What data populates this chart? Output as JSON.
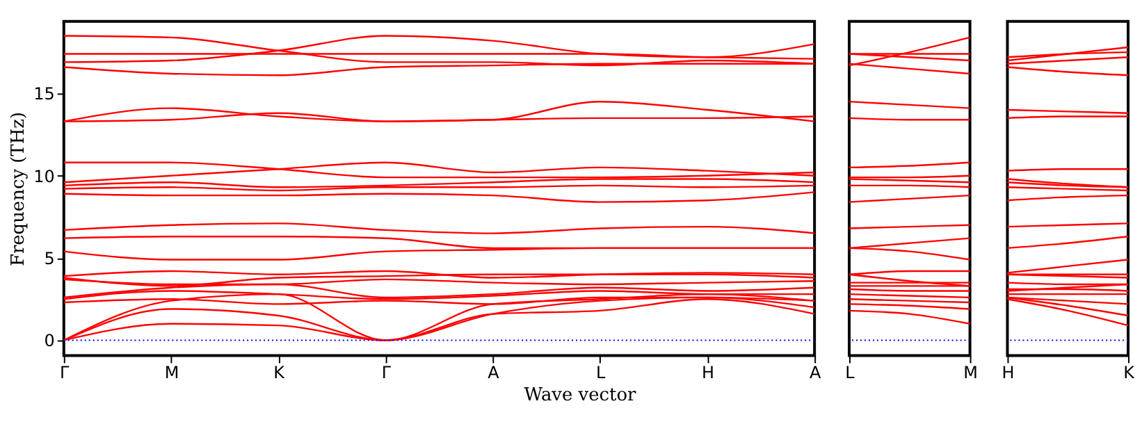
{
  "chart_data": [
    {
      "type": "line",
      "xlabel": "Wave vector",
      "ylabel": "Frequency (THz)",
      "categories": [
        "Γ",
        "M",
        "K",
        "Γ",
        "A",
        "L",
        "H",
        "A"
      ],
      "ylim": [
        -0.93,
        19.38
      ],
      "yticks": [
        0,
        5,
        10,
        15
      ],
      "grid": false,
      "ref_lines": [
        {
          "axis": "y",
          "value": 0,
          "color": "#0000ff",
          "line_style": "dotted"
        }
      ],
      "series": [
        {
          "color": "#ff0000",
          "values": [
            0,
            1.0,
            0.9,
            0,
            1.6,
            1.8,
            2.5,
            1.6
          ]
        },
        {
          "color": "#ff0000",
          "values": [
            0,
            1.9,
            1.5,
            0,
            1.6,
            2.4,
            2.6,
            2.0
          ]
        },
        {
          "color": "#ff0000",
          "values": [
            0,
            2.4,
            2.8,
            0,
            2.2,
            2.5,
            2.8,
            2.4
          ]
        },
        {
          "color": "#ff0000",
          "values": [
            2.3,
            2.5,
            2.2,
            2.4,
            2.2,
            2.6,
            2.6,
            2.4
          ]
        },
        {
          "color": "#ff0000",
          "values": [
            2.5,
            3.0,
            2.8,
            2.5,
            2.7,
            3.0,
            2.8,
            2.8
          ]
        },
        {
          "color": "#ff0000",
          "values": [
            2.6,
            3.2,
            3.4,
            2.6,
            2.8,
            3.2,
            3.0,
            3.2
          ]
        },
        {
          "color": "#ff0000",
          "values": [
            3.7,
            3.4,
            3.4,
            3.7,
            3.5,
            3.4,
            3.5,
            3.6
          ]
        },
        {
          "color": "#ff0000",
          "values": [
            3.8,
            3.3,
            3.8,
            3.9,
            4.0,
            4.0,
            4.0,
            3.8
          ]
        },
        {
          "color": "#ff0000",
          "values": [
            3.9,
            4.2,
            4.0,
            4.2,
            3.8,
            4.0,
            4.1,
            4.0
          ]
        },
        {
          "color": "#ff0000",
          "values": [
            6.2,
            6.3,
            6.3,
            6.2,
            5.6,
            5.6,
            5.6,
            5.6
          ]
        },
        {
          "color": "#ff0000",
          "values": [
            6.7,
            7.0,
            7.1,
            6.7,
            6.5,
            6.8,
            6.9,
            6.5
          ]
        },
        {
          "color": "#ff0000",
          "values": [
            8.9,
            8.8,
            8.8,
            8.9,
            8.8,
            8.4,
            8.5,
            9.0
          ]
        },
        {
          "color": "#ff0000",
          "values": [
            9.2,
            9.3,
            9.1,
            9.3,
            9.3,
            9.4,
            9.3,
            9.4
          ]
        },
        {
          "color": "#ff0000",
          "values": [
            9.4,
            9.6,
            9.3,
            9.4,
            9.6,
            9.8,
            9.8,
            9.6
          ]
        },
        {
          "color": "#ff0000",
          "values": [
            9.6,
            10.0,
            10.4,
            10.8,
            10.2,
            10.5,
            10.3,
            10.0
          ]
        },
        {
          "color": "#ff0000",
          "values": [
            10.8,
            10.8,
            10.4,
            9.9,
            9.9,
            9.9,
            10.0,
            10.2
          ]
        },
        {
          "color": "#ff0000",
          "values": [
            13.3,
            13.4,
            13.8,
            13.3,
            13.4,
            13.5,
            13.5,
            13.6
          ]
        },
        {
          "color": "#ff0000",
          "values": [
            13.3,
            14.1,
            13.6,
            13.3,
            13.4,
            14.5,
            14.0,
            13.3
          ]
        },
        {
          "color": "#ff0000",
          "values": [
            16.6,
            16.2,
            16.1,
            16.6,
            16.7,
            16.8,
            16.8,
            16.8
          ]
        },
        {
          "color": "#ff0000",
          "values": [
            16.9,
            17.0,
            17.6,
            18.5,
            18.2,
            17.4,
            17.2,
            18.0
          ]
        },
        {
          "color": "#ff0000",
          "values": [
            17.4,
            17.4,
            17.4,
            17.4,
            17.4,
            17.4,
            17.2,
            17.1
          ]
        },
        {
          "color": "#ff0000",
          "values": [
            18.5,
            18.4,
            17.6,
            16.9,
            16.9,
            16.7,
            17.0,
            16.8
          ]
        },
        {
          "color": "#ff0000",
          "values": [
            5.4,
            4.9,
            4.9,
            5.4,
            5.5,
            5.6,
            5.6,
            5.6
          ]
        }
      ]
    },
    {
      "type": "line",
      "categories": [
        "L",
        null,
        "M"
      ],
      "ylim": [
        -0.93,
        19.38
      ],
      "tick_labels": "x",
      "grid": false,
      "ref_lines": [
        {
          "axis": "y",
          "value": 0,
          "color": "#0000ff",
          "line_style": "dotted"
        }
      ],
      "series": [
        {
          "color": "#ff0000",
          "values": [
            1.8,
            1.6,
            1.0
          ]
        },
        {
          "color": "#ff0000",
          "values": [
            2.2,
            2.1,
            1.9
          ]
        },
        {
          "color": "#ff0000",
          "values": [
            2.5,
            2.4,
            2.3
          ]
        },
        {
          "color": "#ff0000",
          "values": [
            2.8,
            2.7,
            2.6
          ]
        },
        {
          "color": "#ff0000",
          "values": [
            3.1,
            3.0,
            3.0
          ]
        },
        {
          "color": "#ff0000",
          "values": [
            3.3,
            3.3,
            3.3
          ]
        },
        {
          "color": "#ff0000",
          "values": [
            3.5,
            3.5,
            3.5
          ]
        },
        {
          "color": "#ff0000",
          "values": [
            4.0,
            3.6,
            3.3
          ]
        },
        {
          "color": "#ff0000",
          "values": [
            4.0,
            4.2,
            4.2
          ]
        },
        {
          "color": "#ff0000",
          "values": [
            5.6,
            5.9,
            6.2
          ]
        },
        {
          "color": "#ff0000",
          "values": [
            6.8,
            6.9,
            7.0
          ]
        },
        {
          "color": "#ff0000",
          "values": [
            8.4,
            8.6,
            8.8
          ]
        },
        {
          "color": "#ff0000",
          "values": [
            9.4,
            9.4,
            9.3
          ]
        },
        {
          "color": "#ff0000",
          "values": [
            9.8,
            9.7,
            9.6
          ]
        },
        {
          "color": "#ff0000",
          "values": [
            10.5,
            10.6,
            10.8
          ]
        },
        {
          "color": "#ff0000",
          "values": [
            9.9,
            9.9,
            10.0
          ]
        },
        {
          "color": "#ff0000",
          "values": [
            13.5,
            13.4,
            13.4
          ]
        },
        {
          "color": "#ff0000",
          "values": [
            14.5,
            14.3,
            14.1
          ]
        },
        {
          "color": "#ff0000",
          "values": [
            16.8,
            16.5,
            16.2
          ]
        },
        {
          "color": "#ff0000",
          "values": [
            17.4,
            17.2,
            17.0
          ]
        },
        {
          "color": "#ff0000",
          "values": [
            17.4,
            17.4,
            17.4
          ]
        },
        {
          "color": "#ff0000",
          "values": [
            16.7,
            17.5,
            18.4
          ]
        },
        {
          "color": "#ff0000",
          "values": [
            5.6,
            5.4,
            4.9
          ]
        }
      ]
    },
    {
      "type": "line",
      "categories": [
        "H",
        null,
        "K"
      ],
      "ylim": [
        -0.93,
        19.38
      ],
      "tick_labels": "x",
      "grid": false,
      "ref_lines": [
        {
          "axis": "y",
          "value": 0,
          "color": "#0000ff",
          "line_style": "dotted"
        }
      ],
      "series": [
        {
          "color": "#ff0000",
          "values": [
            2.5,
            1.8,
            0.9
          ]
        },
        {
          "color": "#ff0000",
          "values": [
            2.6,
            2.1,
            1.5
          ]
        },
        {
          "color": "#ff0000",
          "values": [
            2.8,
            2.8,
            2.8
          ]
        },
        {
          "color": "#ff0000",
          "values": [
            2.6,
            2.4,
            2.2
          ]
        },
        {
          "color": "#ff0000",
          "values": [
            3.1,
            3.1,
            3.0
          ]
        },
        {
          "color": "#ff0000",
          "values": [
            3.0,
            3.2,
            3.4
          ]
        },
        {
          "color": "#ff0000",
          "values": [
            3.5,
            3.4,
            3.4
          ]
        },
        {
          "color": "#ff0000",
          "values": [
            4.0,
            3.9,
            3.8
          ]
        },
        {
          "color": "#ff0000",
          "values": [
            4.0,
            4.0,
            4.0
          ]
        },
        {
          "color": "#ff0000",
          "values": [
            5.6,
            5.9,
            6.3
          ]
        },
        {
          "color": "#ff0000",
          "values": [
            6.9,
            7.0,
            7.1
          ]
        },
        {
          "color": "#ff0000",
          "values": [
            8.5,
            8.7,
            8.8
          ]
        },
        {
          "color": "#ff0000",
          "values": [
            9.3,
            9.2,
            9.1
          ]
        },
        {
          "color": "#ff0000",
          "values": [
            9.8,
            9.5,
            9.3
          ]
        },
        {
          "color": "#ff0000",
          "values": [
            10.3,
            10.4,
            10.4
          ]
        },
        {
          "color": "#ff0000",
          "values": [
            9.6,
            9.4,
            9.3
          ]
        },
        {
          "color": "#ff0000",
          "values": [
            13.5,
            13.6,
            13.6
          ]
        },
        {
          "color": "#ff0000",
          "values": [
            14.0,
            13.9,
            13.8
          ]
        },
        {
          "color": "#ff0000",
          "values": [
            16.6,
            16.3,
            16.1
          ]
        },
        {
          "color": "#ff0000",
          "values": [
            17.2,
            17.4,
            17.5
          ]
        },
        {
          "color": "#ff0000",
          "values": [
            17.0,
            17.4,
            17.8
          ]
        },
        {
          "color": "#ff0000",
          "values": [
            16.8,
            17.0,
            17.2
          ]
        },
        {
          "color": "#ff0000",
          "values": [
            4.1,
            4.5,
            4.9
          ]
        }
      ]
    }
  ]
}
